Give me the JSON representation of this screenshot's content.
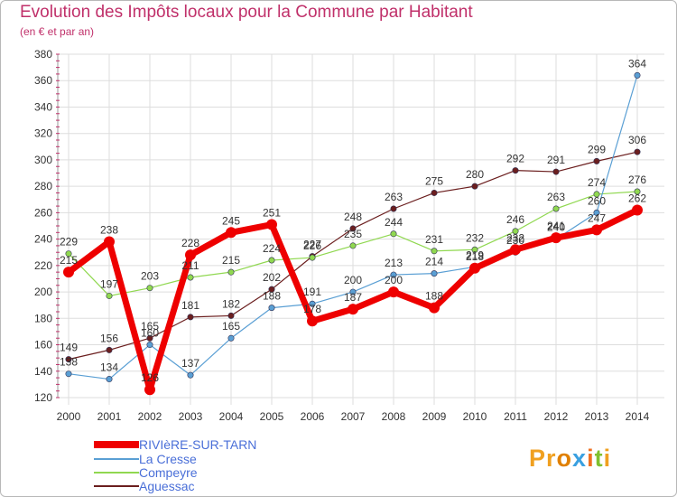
{
  "header": {
    "title": "Evolution des Impôts locaux pour la Commune par Habitant",
    "subtitle": "(en € et par an)"
  },
  "logo": {
    "text": "Proxiti"
  },
  "colors": {
    "title": "#c0306a",
    "legend_text": "#4a6fd8",
    "grid": "#dddddd",
    "axis_tick": "#c0306a"
  },
  "chart_data": {
    "type": "line",
    "title": "Evolution des Impôts locaux pour la Commune par Habitant",
    "subtitle": "(en € et par an)",
    "xlabel": "",
    "ylabel": "",
    "ylim": [
      120,
      380
    ],
    "yticks": [
      120,
      140,
      160,
      180,
      200,
      220,
      240,
      260,
      280,
      300,
      320,
      340,
      360,
      380
    ],
    "categories": [
      "2000",
      "2001",
      "2002",
      "2003",
      "2004",
      "2005",
      "2006",
      "2007",
      "2008",
      "2009",
      "2010",
      "2011",
      "2012",
      "2013",
      "2014"
    ],
    "grid": true,
    "legend_position": "bottom-left",
    "series": [
      {
        "name": "RIVIèRE-SUR-TARN",
        "color": "#ee0000",
        "width": 7,
        "values": [
          215,
          238,
          126,
          228,
          245,
          251,
          178,
          187,
          200,
          188,
          218,
          232,
          241,
          247,
          262
        ]
      },
      {
        "name": "La Cresse",
        "color": "#5a9fd4",
        "width": 1.2,
        "values": [
          138,
          134,
          160,
          137,
          165,
          188,
          191,
          200,
          213,
          214,
          219,
          230,
          240,
          260,
          364
        ]
      },
      {
        "name": "Compeyre",
        "color": "#90d850",
        "width": 1.2,
        "values": [
          229,
          197,
          203,
          211,
          215,
          224,
          226,
          235,
          244,
          231,
          232,
          246,
          263,
          274,
          276
        ]
      },
      {
        "name": "Aguessac",
        "color": "#6b1e1e",
        "width": 1.2,
        "values": [
          149,
          156,
          165,
          181,
          182,
          202,
          227,
          248,
          263,
          275,
          280,
          292,
          291,
          299,
          306
        ]
      }
    ]
  }
}
